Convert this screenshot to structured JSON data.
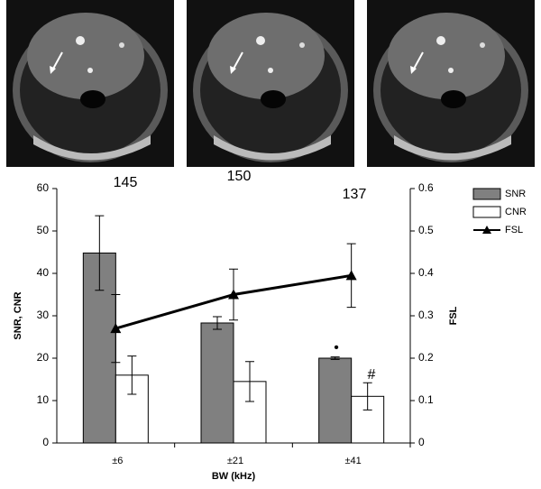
{
  "images": {
    "labels": [
      "145",
      "150",
      "137"
    ]
  },
  "chart_data": {
    "type": "bar",
    "categories": [
      "±6",
      "±21",
      "±41"
    ],
    "x_label": "BW (kHz)",
    "y_label": "SNR, CNR",
    "y2_label": "FSL",
    "ylim": [
      0,
      60
    ],
    "yticks": [
      0,
      10,
      20,
      30,
      40,
      50,
      60
    ],
    "y2lim": [
      0,
      0.6
    ],
    "y2ticks": [
      0,
      0.1,
      0.2,
      0.3,
      0.4,
      0.5,
      0.6
    ],
    "series": [
      {
        "name": "SNR",
        "color": "#808080",
        "values": [
          44.8,
          28.3,
          20.0
        ],
        "errors": [
          8.8,
          1.5,
          0.3
        ]
      },
      {
        "name": "CNR",
        "color": "#ffffff",
        "values": [
          16,
          14.5,
          11
        ],
        "errors": [
          4.5,
          4.7,
          3.2
        ]
      },
      {
        "name": "FSL",
        "color": "#000000",
        "axis": "y2",
        "values": [
          0.27,
          0.35,
          0.395
        ],
        "errors": [
          0.08,
          0.06,
          0.075
        ]
      }
    ],
    "annotations": [
      "•",
      "#"
    ],
    "legend": "upper-right"
  }
}
